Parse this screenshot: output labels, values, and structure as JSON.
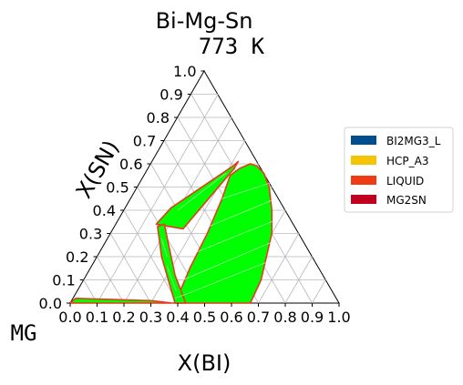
{
  "chart_data": {
    "type": "ternary",
    "title": "Bi-Mg-Sn",
    "subtitle": "773  K",
    "corner_label_bottom_left": "MG",
    "xlabel": "X(BI)",
    "ylabel": "X(SN)",
    "xlim": [
      0,
      1
    ],
    "ylim": [
      0,
      1
    ],
    "grid": true,
    "legend_placement": "right",
    "x_ticks": [
      "0.0",
      "0.1",
      "0.2",
      "0.3",
      "0.4",
      "0.5",
      "0.6",
      "0.7",
      "0.8",
      "0.9",
      "1.0"
    ],
    "y_ticks": [
      "0.0",
      "0.1",
      "0.2",
      "0.3",
      "0.4",
      "0.5",
      "0.6",
      "0.7",
      "0.8",
      "0.9",
      "1.0"
    ],
    "legend": [
      {
        "name": "BI2MG3_L",
        "color": "#00508f"
      },
      {
        "name": "HCP_A3",
        "color": "#f5c400"
      },
      {
        "name": "LIQUID",
        "color": "#f03c14"
      },
      {
        "name": "MG2SN",
        "color": "#c0001e"
      }
    ],
    "fill_color": "#00ff00",
    "boundary_color": "#e83a1a",
    "regions": [
      {
        "name": "large-two-phase-region",
        "points": [
          [
            0.39,
            0
          ],
          [
            0.67,
            0
          ],
          [
            0.66,
            0.1
          ],
          [
            0.63,
            0.2
          ],
          [
            0.6,
            0.3
          ],
          [
            0.55,
            0.4
          ],
          [
            0.49,
            0.5
          ],
          [
            0.44,
            0.56
          ],
          [
            0.4,
            0.59
          ],
          [
            0.37,
            0.6
          ],
          [
            0.34,
            0.58
          ],
          [
            0.32,
            0.55
          ],
          [
            0.34,
            0.45
          ],
          [
            0.36,
            0.3
          ],
          [
            0.37,
            0.15
          ]
        ]
      },
      {
        "name": "upper-left-band",
        "points": [
          [
            0.26,
            0.32
          ],
          [
            0.32,
            0.58
          ],
          [
            0.32,
            0.61
          ],
          [
            0.31,
            0.59
          ],
          [
            0.17,
            0.41
          ],
          [
            0.15,
            0.34
          ]
        ]
      },
      {
        "name": "middle-band",
        "points": [
          [
            0.16,
            0.33
          ],
          [
            0.18,
            0.34
          ],
          [
            0.33,
            0.12
          ],
          [
            0.43,
            0
          ],
          [
            0.39,
            0
          ],
          [
            0.24,
            0.2
          ]
        ]
      },
      {
        "name": "bottom-band",
        "points": [
          [
            0.01,
            0.02
          ],
          [
            0.02,
            0.02
          ],
          [
            0.3,
            0.01
          ],
          [
            0.38,
            0.0
          ],
          [
            0.0,
            0.0
          ]
        ]
      }
    ],
    "tie_lines": [
      [
        [
          0.38,
          0.02
        ],
        [
          0.65,
          0.18
        ]
      ],
      [
        [
          0.37,
          0.1
        ],
        [
          0.63,
          0.27
        ]
      ],
      [
        [
          0.36,
          0.22
        ],
        [
          0.59,
          0.36
        ]
      ],
      [
        [
          0.35,
          0.33
        ],
        [
          0.54,
          0.45
        ]
      ],
      [
        [
          0.34,
          0.45
        ],
        [
          0.49,
          0.52
        ]
      ],
      [
        [
          0.2,
          0.4
        ],
        [
          0.3,
          0.56
        ]
      ],
      [
        [
          0.2,
          0.28
        ],
        [
          0.26,
          0.2
        ]
      ],
      [
        [
          0.28,
          0.16
        ],
        [
          0.37,
          0.05
        ]
      ]
    ]
  }
}
